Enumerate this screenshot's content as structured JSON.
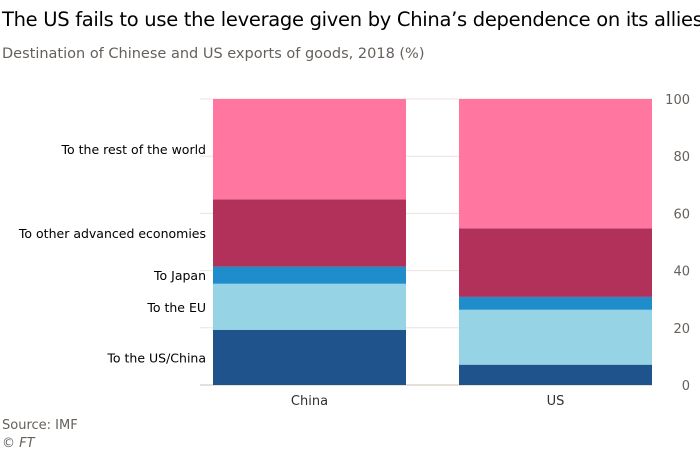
{
  "chart_data": {
    "type": "bar",
    "stacked": true,
    "title": "The US fails to use the leverage given by China’s dependence on its allies",
    "subtitle": "Destination of Chinese and US exports of goods, 2018 (%)",
    "categories": [
      "China",
      "US"
    ],
    "series": [
      {
        "name": "To the US/China",
        "color": "#1f538b",
        "values": [
          19.3,
          7.1
        ]
      },
      {
        "name": "To the EU",
        "color": "#96d3e4",
        "values": [
          16.1,
          19.2
        ]
      },
      {
        "name": "To Japan",
        "color": "#1f8dcc",
        "values": [
          6.0,
          4.5
        ]
      },
      {
        "name": "To other advanced economies",
        "color": "#b2315b",
        "values": [
          23.5,
          24.0
        ]
      },
      {
        "name": "To the rest of the world",
        "color": "#ff77a1",
        "values": [
          35.1,
          45.2
        ]
      }
    ],
    "ylim": [
      0,
      100
    ],
    "yticks": [
      0,
      20,
      40,
      60,
      80,
      100
    ],
    "grid": true,
    "legend": "left-labels"
  },
  "source": "Source: IMF",
  "credit": "© FT"
}
